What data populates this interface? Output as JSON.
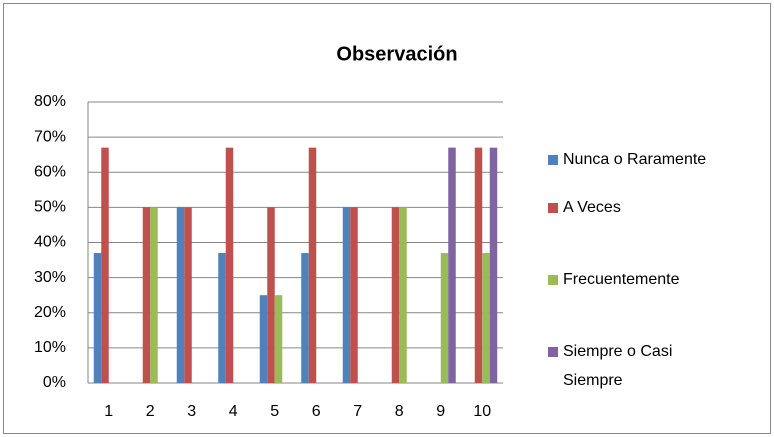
{
  "chart_data": {
    "type": "bar",
    "title": "Observación",
    "categories": [
      "1",
      "2",
      "3",
      "4",
      "5",
      "6",
      "7",
      "8",
      "9",
      "10"
    ],
    "series": [
      {
        "name": "Nunca o Raramente",
        "color": "#4f81bd",
        "values": [
          37,
          0,
          50,
          37,
          25,
          37,
          50,
          0,
          0,
          0
        ]
      },
      {
        "name": "A Veces",
        "color": "#c0504d",
        "values": [
          67,
          50,
          50,
          67,
          50,
          67,
          50,
          50,
          0,
          67
        ]
      },
      {
        "name": "Frecuentemente",
        "color": "#9bbb59",
        "values": [
          0,
          50,
          0,
          0,
          25,
          0,
          0,
          50,
          37,
          37
        ]
      },
      {
        "name": "Siempre o Casi Siempre",
        "color": "#8064a2",
        "values": [
          0,
          0,
          0,
          0,
          0,
          0,
          0,
          0,
          67,
          67
        ]
      }
    ],
    "ylim": [
      0,
      80
    ],
    "yticks": [
      {
        "value": 0,
        "label": "0%"
      },
      {
        "value": 10,
        "label": "10%"
      },
      {
        "value": 20,
        "label": "20%"
      },
      {
        "value": 30,
        "label": "30%"
      },
      {
        "value": 40,
        "label": "40%"
      },
      {
        "value": 50,
        "label": "50%"
      },
      {
        "value": 60,
        "label": "60%"
      },
      {
        "value": 70,
        "label": "70%"
      },
      {
        "value": 80,
        "label": "80%"
      }
    ],
    "grid": true,
    "legend": "right"
  }
}
